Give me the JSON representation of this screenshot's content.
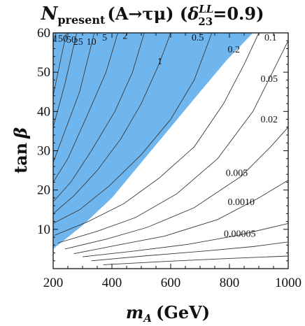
{
  "chart_data": {
    "type": "contour",
    "title": {
      "symbol": "N",
      "subscript": "present",
      "process": "(A→τμ)",
      "delta_symbol": "δ",
      "delta_superscript": "LL",
      "delta_subscript": "23",
      "delta_value": "=0.9",
      "close": ")"
    },
    "xlabel": {
      "symbol": "m",
      "subscript": "A",
      "unit": "(GeV)"
    },
    "ylabel": {
      "symbol": "tan",
      "greek": "β"
    },
    "xlim": [
      200,
      1000
    ],
    "ylim": [
      0,
      60
    ],
    "xticks": [
      "200",
      "400",
      "600",
      "800",
      "1000"
    ],
    "yticks": [
      "10",
      "20",
      "30",
      "40",
      "50",
      "60"
    ],
    "excluded_region_color": "#6fb6ee",
    "contour_labels": [
      "150",
      "50",
      "25",
      "10",
      "5",
      "2",
      "1",
      "0.5",
      "0.2",
      "0.1",
      "0.05",
      "0.02",
      "0.005",
      "0.0010",
      "0.00005"
    ],
    "contours": [
      {
        "level": "150",
        "points": [
          [
            200,
            57.5
          ],
          [
            210,
            60
          ]
        ]
      },
      {
        "level": "50",
        "points": [
          [
            200,
            44
          ],
          [
            225,
            53
          ],
          [
            245,
            60
          ]
        ]
      },
      {
        "level": "25",
        "points": [
          [
            200,
            36
          ],
          [
            240,
            47
          ],
          [
            280,
            60
          ]
        ]
      },
      {
        "level": "10",
        "points": [
          [
            200,
            27
          ],
          [
            240,
            35
          ],
          [
            290,
            45
          ],
          [
            340,
            60
          ]
        ]
      },
      {
        "level": "5",
        "points": [
          [
            200,
            22
          ],
          [
            250,
            28
          ],
          [
            310,
            38
          ],
          [
            380,
            50
          ],
          [
            420,
            60
          ]
        ]
      },
      {
        "level": "2",
        "points": [
          [
            200,
            17
          ],
          [
            260,
            22
          ],
          [
            330,
            30
          ],
          [
            410,
            40
          ],
          [
            470,
            50
          ],
          [
            510,
            60
          ]
        ]
      },
      {
        "level": "1",
        "points": [
          [
            200,
            14
          ],
          [
            270,
            18.5
          ],
          [
            350,
            25
          ],
          [
            430,
            33
          ],
          [
            500,
            42
          ],
          [
            560,
            52
          ],
          [
            600,
            60
          ]
        ]
      },
      {
        "level": "0.5",
        "points": [
          [
            200,
            11.5
          ],
          [
            290,
            15
          ],
          [
            390,
            21
          ],
          [
            500,
            29
          ],
          [
            600,
            38
          ],
          [
            680,
            48
          ],
          [
            740,
            60
          ]
        ]
      },
      {
        "level": "0.2",
        "points": [
          [
            205,
            8.5
          ],
          [
            320,
            12
          ],
          [
            440,
            16.5
          ],
          [
            560,
            23
          ],
          [
            680,
            31
          ],
          [
            780,
            42
          ],
          [
            850,
            52
          ],
          [
            900,
            60
          ]
        ]
      },
      {
        "level": "0.1",
        "points": [
          [
            215,
            6.5
          ],
          [
            350,
            9.5
          ],
          [
            480,
            13
          ],
          [
            620,
            19
          ],
          [
            760,
            28
          ],
          [
            880,
            40
          ],
          [
            960,
            52
          ],
          [
            1000,
            58
          ]
        ]
      },
      {
        "level": "0.05",
        "points": [
          [
            240,
            5
          ],
          [
            380,
            7.5
          ],
          [
            520,
            10.5
          ],
          [
            680,
            15.5
          ],
          [
            840,
            23.5
          ],
          [
            940,
            31
          ],
          [
            1000,
            36
          ]
        ]
      },
      {
        "level": "0.02",
        "points": [
          [
            270,
            3.8
          ],
          [
            420,
            6
          ],
          [
            580,
            8.3
          ],
          [
            760,
            12.5
          ],
          [
            900,
            18
          ],
          [
            1000,
            22.5
          ]
        ]
      },
      {
        "level": "0.005",
        "points": [
          [
            300,
            3
          ],
          [
            480,
            4.5
          ],
          [
            660,
            6.2
          ],
          [
            830,
            8.5
          ],
          [
            1000,
            11.5
          ]
        ]
      },
      {
        "level": "0.0010",
        "points": [
          [
            330,
            2
          ],
          [
            520,
            3.3
          ],
          [
            720,
            4.5
          ],
          [
            880,
            5.6
          ],
          [
            1000,
            6.8
          ]
        ]
      },
      {
        "level": "0.00005",
        "points": [
          [
            370,
            1
          ],
          [
            600,
            1.9
          ],
          [
            800,
            2.6
          ],
          [
            1000,
            3.2
          ]
        ]
      }
    ],
    "excluded_region_boundary": [
      [
        200,
        5
      ],
      [
        300,
        11
      ],
      [
        400,
        18
      ],
      [
        500,
        27
      ],
      [
        600,
        36
      ],
      [
        700,
        45
      ],
      [
        790,
        53
      ],
      [
        880,
        60
      ]
    ]
  }
}
